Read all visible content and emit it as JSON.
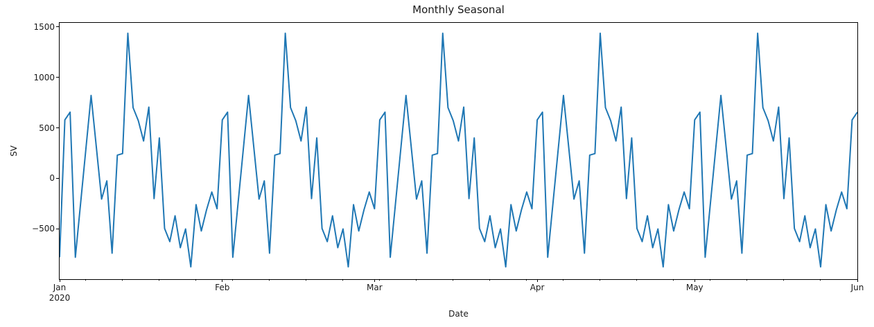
{
  "figure": {
    "title": "Monthly Seasonal",
    "xlabel": "Date",
    "ylabel": "SV"
  },
  "axes": {
    "y_ticks": [
      {
        "label": "1500",
        "value": 1500
      },
      {
        "label": "1000",
        "value": 1000
      },
      {
        "label": "500",
        "value": 500
      },
      {
        "label": "0",
        "value": 0
      },
      {
        "label": "−500",
        "value": -500
      }
    ],
    "x_major_ticks": [
      {
        "label": "Jan",
        "sublabel": "2020",
        "day": 0
      },
      {
        "label": "Feb",
        "day": 31
      },
      {
        "label": "Mar",
        "day": 60
      },
      {
        "label": "Apr",
        "day": 91
      },
      {
        "label": "May",
        "day": 121
      },
      {
        "label": "Jun",
        "day": 152
      }
    ],
    "x_minor_tick_days": [
      5,
      12,
      19,
      26,
      33,
      40,
      47,
      54,
      61,
      68,
      75,
      82,
      89,
      96,
      103,
      110,
      117,
      124,
      131,
      138,
      145
    ],
    "xlim_days": [
      0,
      152
    ],
    "ylim": [
      -997,
      1538
    ]
  },
  "chart_data": {
    "type": "line",
    "title": "Monthly Seasonal",
    "xlabel": "Date",
    "ylabel": "SV",
    "x_start": "2020-01-01",
    "x_end": "2020-06-01",
    "x_step_days": 1,
    "seasonal_period_days": 30,
    "line_color": "#1f77b4",
    "grid": false,
    "legend": null,
    "y_range_observed": [
      -875,
      1435
    ],
    "values": [
      -780,
      578,
      655,
      -780,
      -247,
      287,
      820,
      308,
      -205,
      -25,
      -740,
      230,
      245,
      1435,
      700,
      570,
      370,
      705,
      -200,
      400,
      -495,
      -625,
      -370,
      -685,
      -500,
      -875,
      -260,
      -520,
      -310,
      -135,
      -300,
      578,
      655,
      -780,
      -247,
      287,
      820,
      308,
      -205,
      -25,
      -740,
      230,
      245,
      1435,
      700,
      570,
      370,
      705,
      -200,
      400,
      -495,
      -625,
      -370,
      -685,
      -500,
      -875,
      -260,
      -520,
      -310,
      -135,
      -300,
      578,
      655,
      -780,
      -247,
      287,
      820,
      308,
      -205,
      -25,
      -740,
      230,
      245,
      1435,
      700,
      570,
      370,
      705,
      -200,
      400,
      -495,
      -625,
      -370,
      -685,
      -500,
      -875,
      -260,
      -520,
      -310,
      -135,
      -300,
      578,
      655,
      -780,
      -247,
      287,
      820,
      308,
      -205,
      -25,
      -740,
      230,
      245,
      1435,
      700,
      570,
      370,
      705,
      -200,
      400,
      -495,
      -625,
      -370,
      -685,
      -500,
      -875,
      -260,
      -520,
      -310,
      -135,
      -300,
      578,
      655,
      -780,
      -247,
      287,
      820,
      308,
      -205,
      -25,
      -740,
      230,
      245,
      1435,
      700,
      570,
      370,
      705,
      -200,
      400,
      -495,
      -625,
      -370,
      -685,
      -500,
      -875,
      -260,
      -520,
      -310,
      -135,
      -300,
      578,
      655
    ]
  }
}
